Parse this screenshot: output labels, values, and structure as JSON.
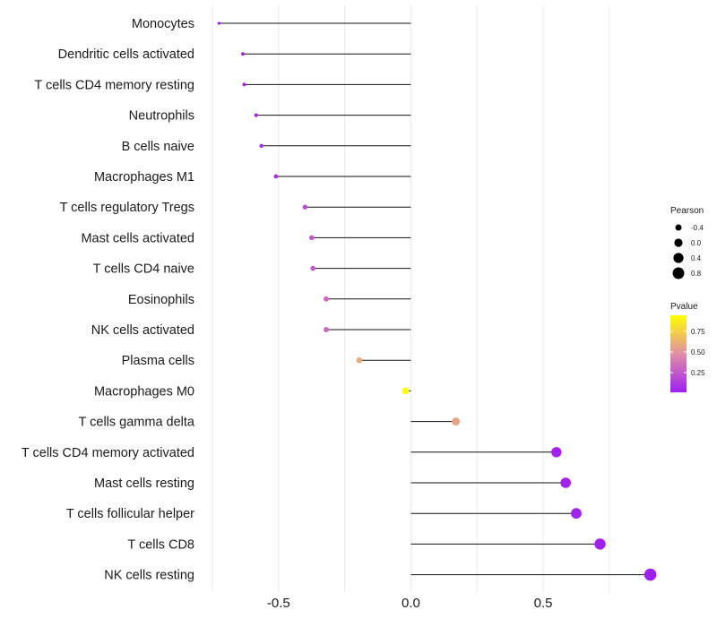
{
  "chart_data": {
    "type": "lollipop",
    "title": "",
    "xlabel": "",
    "ylabel": "",
    "xlim": [
      -0.75,
      0.93
    ],
    "x_ticks": [
      -0.5,
      0.0,
      0.5
    ],
    "x_tick_labels": [
      "-0.5",
      "0.0",
      "0.5"
    ],
    "grid": true,
    "categories": [
      "Monocytes",
      "Dendritic cells activated",
      "T cells CD4 memory resting",
      "Neutrophils",
      "B cells naive",
      "Macrophages M1",
      "T cells regulatory  Tregs ",
      "Mast cells activated",
      "T cells CD4 naive",
      "Eosinophils",
      "NK cells activated",
      "Plasma cells",
      "Macrophages M0",
      "T cells gamma delta",
      "T cells CD4 memory activated",
      "Mast cells resting",
      "T cells follicular helper",
      "T cells CD8",
      "NK cells resting"
    ],
    "values": [
      -0.725,
      -0.635,
      -0.63,
      -0.585,
      -0.565,
      -0.51,
      -0.4,
      -0.375,
      -0.37,
      -0.32,
      -0.32,
      -0.195,
      -0.02,
      0.17,
      0.55,
      0.585,
      0.625,
      0.715,
      0.905
    ],
    "pvalues": [
      0.01,
      0.02,
      0.02,
      0.03,
      0.04,
      0.06,
      0.2,
      0.25,
      0.26,
      0.33,
      0.33,
      0.62,
      0.99,
      0.6,
      0.01,
      0.01,
      0.01,
      0.005,
      0.001
    ],
    "size_legend": {
      "title": "Pearson",
      "labels": [
        "-0.4",
        "0.0",
        "0.4",
        "0.8"
      ]
    },
    "color_legend": {
      "title": "Pvalue",
      "labels": [
        "0.75",
        "0.50",
        "0.25"
      ],
      "low_color": "#a020f0",
      "mid_color": "#e28fa6",
      "high_color": "#ffff00"
    }
  }
}
